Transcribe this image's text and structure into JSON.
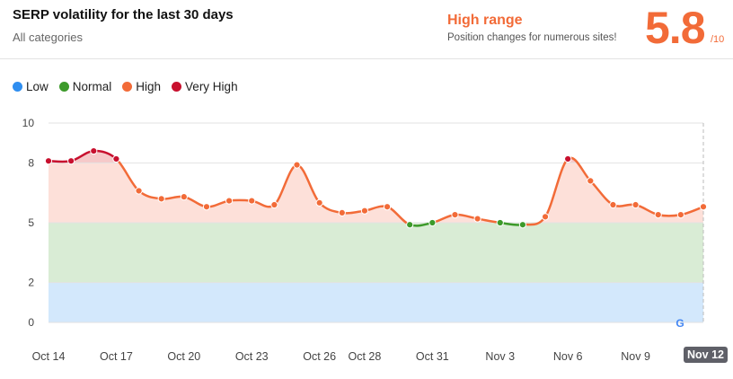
{
  "header": {
    "title": "SERP volatility for the last 30 days",
    "subtitle": "All categories",
    "range_label": "High range",
    "range_desc": "Position changes for numerous sites!",
    "score": "5.8",
    "score_max": "/10"
  },
  "legend": [
    {
      "label": "Low",
      "color": "#2f8ef0"
    },
    {
      "label": "Normal",
      "color": "#3c9a2a"
    },
    {
      "label": "High",
      "color": "#f26b38"
    },
    {
      "label": "Very High",
      "color": "#c8102e"
    }
  ],
  "chart_data": {
    "type": "line",
    "title": "SERP volatility for the last 30 days",
    "ylim": [
      0,
      10
    ],
    "yticks": [
      "0",
      "2",
      "5",
      "8",
      "10"
    ],
    "ytick_values": [
      0,
      2,
      5,
      8,
      10
    ],
    "bands": [
      {
        "name": "Low",
        "from": 0,
        "to": 2,
        "color": "#d3e8fc"
      },
      {
        "name": "Normal",
        "from": 2,
        "to": 5,
        "color": "#d9ecd5"
      },
      {
        "name": "High",
        "from": 5,
        "to": 8,
        "color": "#fde0d9"
      }
    ],
    "x": [
      "Oct 14",
      "Oct 15",
      "Oct 16",
      "Oct 17",
      "Oct 18",
      "Oct 19",
      "Oct 20",
      "Oct 21",
      "Oct 22",
      "Oct 23",
      "Oct 24",
      "Oct 25",
      "Oct 26",
      "Oct 27",
      "Oct 28",
      "Oct 29",
      "Oct 30",
      "Oct 31",
      "Nov 1",
      "Nov 2",
      "Nov 3",
      "Nov 4",
      "Nov 5",
      "Nov 6",
      "Nov 7",
      "Nov 8",
      "Nov 9",
      "Nov 10",
      "Nov 11",
      "Nov 12"
    ],
    "values": [
      8.1,
      8.1,
      8.6,
      8.2,
      6.6,
      6.2,
      6.3,
      5.8,
      6.1,
      6.1,
      5.9,
      7.9,
      6.0,
      5.5,
      5.6,
      5.8,
      4.9,
      5.0,
      5.4,
      5.2,
      5.0,
      4.9,
      5.3,
      8.2,
      7.1,
      5.9,
      5.9,
      5.4,
      5.4,
      5.8
    ],
    "xtick_labels": [
      "Oct 14",
      "Oct 17",
      "Oct 20",
      "Oct 23",
      "Oct 26",
      "Oct 28",
      "Oct 31",
      "Nov 3",
      "Nov 6",
      "Nov 9"
    ],
    "xtick_index": [
      0,
      3,
      6,
      9,
      12,
      14,
      17,
      20,
      23,
      26
    ],
    "selected_label": "Nov 12"
  }
}
